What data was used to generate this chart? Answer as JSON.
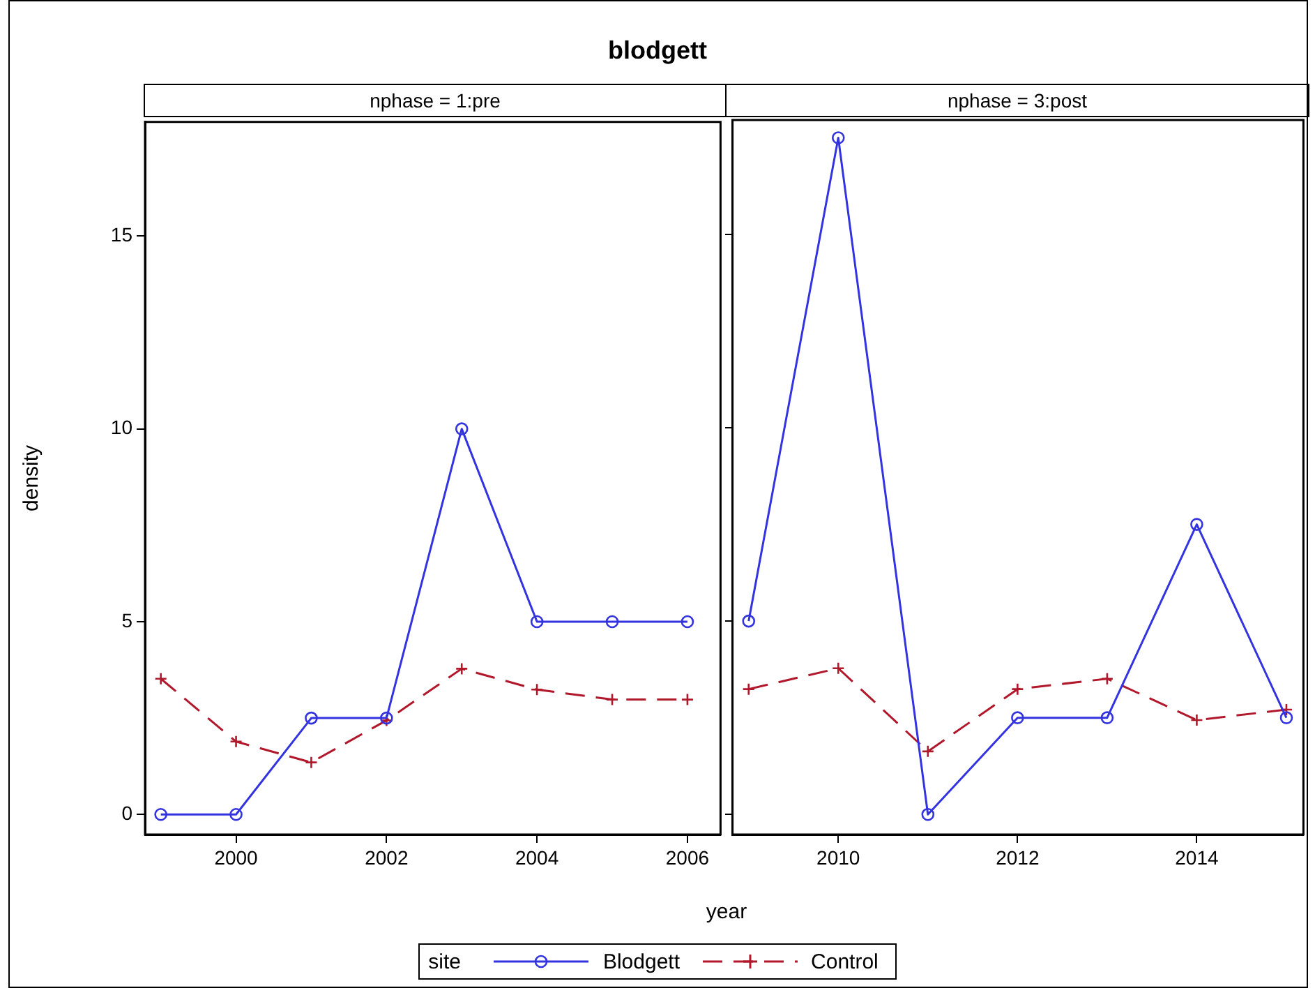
{
  "chart_data": [
    {
      "type": "line",
      "title": "blodgett",
      "subtitle": "nphase = 1:pre",
      "xlabel": "year",
      "ylabel": "density",
      "legend": "bottom",
      "legend_title": "site",
      "x": [
        1999,
        2000,
        2001,
        2002,
        2003,
        2004,
        2005,
        2006
      ],
      "series": [
        {
          "name": "Blodgett",
          "color": "#3333e0",
          "marker": "circle",
          "line_style": "solid",
          "values": [
            0,
            0,
            2.5,
            2.5,
            10,
            5,
            5,
            5
          ]
        },
        {
          "name": "Control",
          "color": "#b2182b",
          "marker": "cross",
          "line_style": "dashed",
          "values": [
            3.52,
            1.89,
            1.35,
            2.44,
            3.78,
            3.24,
            2.98,
            2.98
          ]
        }
      ],
      "xlim": [
        1998.79,
        2006.44
      ],
      "xticks": [
        2000,
        2002,
        2004,
        2006
      ],
      "ylim": [
        -0.52,
        17.96
      ],
      "yticks": [
        0,
        5,
        10,
        15
      ],
      "grid": false
    },
    {
      "type": "line",
      "subtitle": "nphase = 3:post",
      "x": [
        2009,
        2010,
        2011,
        2012,
        2013,
        2014,
        2015
      ],
      "series": [
        {
          "color": "#3333e0",
          "marker": "circle",
          "line_style": "solid",
          "values": [
            5,
            17.5,
            0,
            2.5,
            2.5,
            7.5,
            2.5
          ]
        },
        {
          "color": "#b2182b",
          "marker": "cross",
          "line_style": "dashed",
          "values": [
            3.24,
            3.78,
            1.63,
            3.24,
            3.51,
            2.44,
            2.71
          ]
        }
      ],
      "xlim": [
        2008.82,
        2015.19
      ],
      "xticks": [
        2010,
        2012,
        2014
      ],
      "ylim": [
        -0.52,
        17.96
      ],
      "yticks": [
        0,
        5,
        10,
        15
      ],
      "tick_labels": "x",
      "grid": false
    }
  ]
}
